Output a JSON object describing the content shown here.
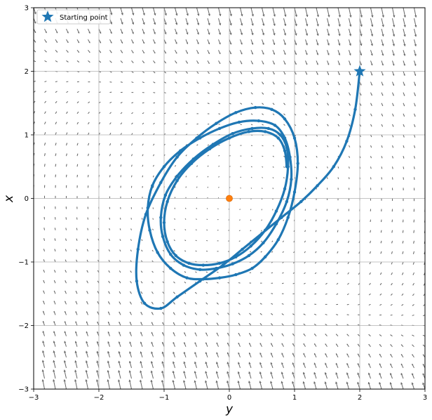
{
  "chart_data": {
    "type": "scatter",
    "title": "",
    "xlabel": "y",
    "ylabel": "x",
    "xlim": [
      -3,
      3
    ],
    "ylim": [
      -3,
      3
    ],
    "x_ticks": [
      -3,
      -2,
      -1,
      0,
      1,
      2,
      3
    ],
    "y_ticks": [
      -3,
      -2,
      -1,
      0,
      1,
      2,
      3
    ],
    "x_tick_labels": [
      "−3",
      "−2",
      "−1",
      "0",
      "1",
      "2",
      "3"
    ],
    "y_tick_labels": [
      "−3",
      "−2",
      "−1",
      "0",
      "1",
      "2",
      "3"
    ],
    "grid": true,
    "legend": {
      "position": "top-left",
      "entries": [
        "Starting point"
      ]
    },
    "background": "vector-field",
    "vector_field_color": "#666666",
    "trajectory_color": "#1f77b4",
    "fixed_point_color": "#ff7f0e",
    "starting_point": {
      "x": 2.0,
      "y": 2.0,
      "marker": "star"
    },
    "fixed_point": {
      "x": 0.0,
      "y": 0.0
    },
    "trajectory": {
      "x": [
        2.0,
        1.93,
        1.8,
        1.6,
        1.35,
        1.1,
        0.8,
        0.5,
        0.2,
        -0.1,
        -0.45,
        -0.8,
        -1.05,
        -1.3,
        -1.42,
        -1.4,
        -1.28,
        -1.05,
        -0.8,
        -0.5,
        -0.2,
        0.1,
        0.4,
        0.65,
        0.85,
        1.0,
        1.05,
        1.0,
        0.9,
        0.75,
        0.55,
        0.35,
        0.1,
        -0.15,
        -0.4,
        -0.65,
        -0.9,
        -1.1,
        -1.22,
        -1.25,
        -1.18,
        -1.0,
        -0.75,
        -0.45,
        -0.15,
        0.15,
        0.45,
        0.7,
        0.85,
        0.93,
        0.95,
        0.88,
        0.72,
        0.52,
        0.3,
        0.05,
        -0.2,
        -0.45,
        -0.7,
        -0.9,
        -1.02,
        -1.05,
        -0.98,
        -0.8,
        -0.55,
        -0.25,
        0.05,
        0.35,
        0.6,
        0.78,
        0.88,
        0.9,
        0.85,
        0.72,
        0.55,
        0.33,
        0.1,
        -0.15,
        -0.4,
        -0.62,
        -0.82,
        -0.95,
        -1.0,
        -0.95,
        -0.8,
        -0.58,
        -0.3,
        0.0,
        0.3,
        0.55,
        0.75,
        0.85,
        0.88
      ],
      "y": [
        2.0,
        1.4,
        0.9,
        0.5,
        0.2,
        -0.05,
        -0.3,
        -0.55,
        -0.8,
        -1.05,
        -1.3,
        -1.55,
        -1.73,
        -1.65,
        -1.3,
        -0.8,
        -0.25,
        0.25,
        0.65,
        0.95,
        1.18,
        1.35,
        1.43,
        1.4,
        1.25,
        0.95,
        0.55,
        0.1,
        -0.3,
        -0.65,
        -0.92,
        -1.1,
        -1.2,
        -1.25,
        -1.27,
        -1.25,
        -1.1,
        -0.85,
        -0.5,
        -0.15,
        0.2,
        0.5,
        0.75,
        0.95,
        1.1,
        1.2,
        1.22,
        1.15,
        0.95,
        0.65,
        0.3,
        -0.05,
        -0.4,
        -0.7,
        -0.9,
        -1.03,
        -1.1,
        -1.12,
        -1.05,
        -0.88,
        -0.6,
        -0.3,
        0.05,
        0.35,
        0.62,
        0.85,
        1.02,
        1.1,
        1.1,
        1.0,
        0.8,
        0.5,
        0.15,
        -0.2,
        -0.5,
        -0.75,
        -0.92,
        -1.02,
        -1.05,
        -1.02,
        -0.9,
        -0.68,
        -0.38,
        -0.05,
        0.28,
        0.55,
        0.78,
        0.95,
        1.05,
        1.05,
        0.95,
        0.75,
        0.5
      ]
    }
  }
}
